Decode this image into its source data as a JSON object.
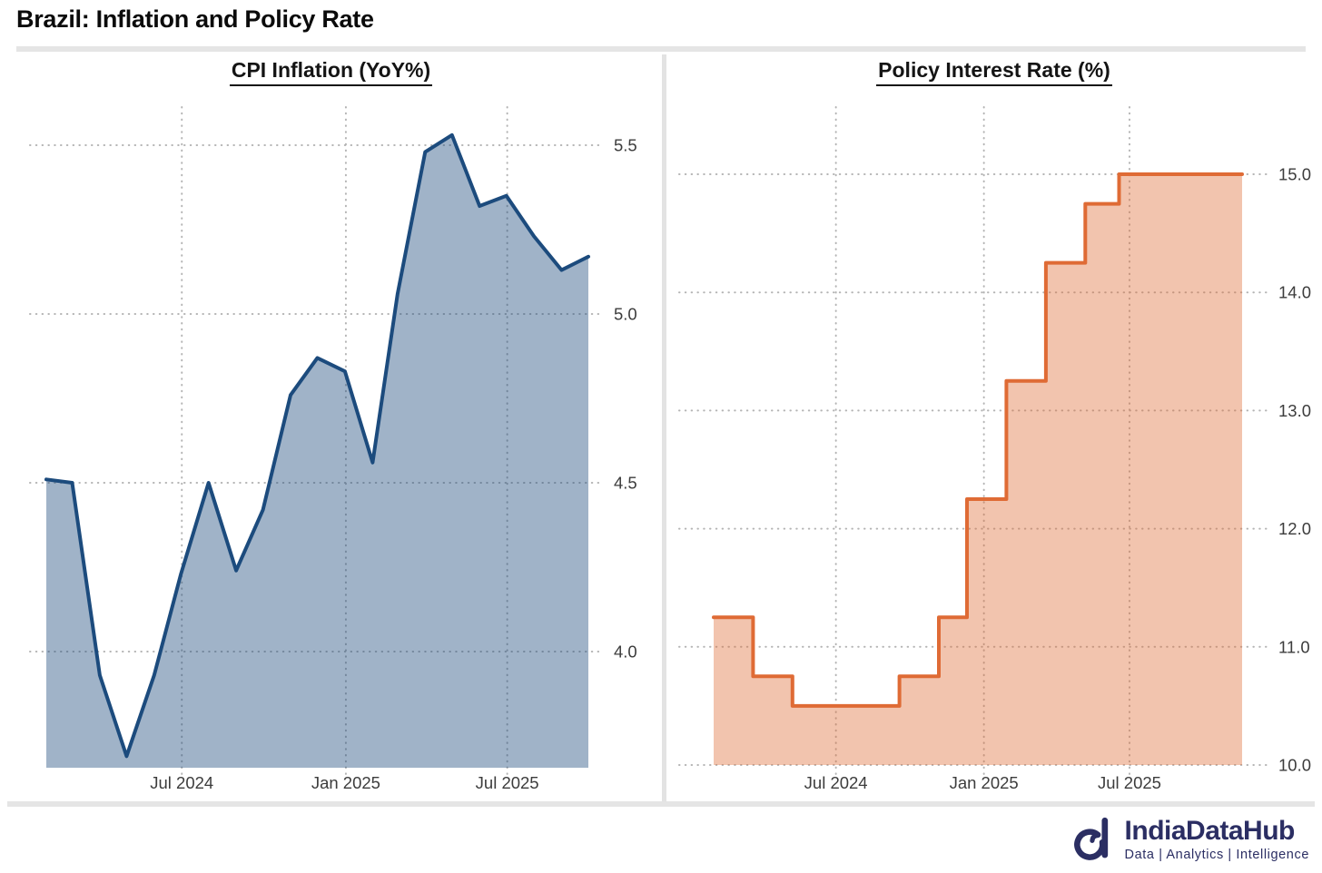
{
  "page": {
    "title": "Brazil: Inflation and Policy Rate"
  },
  "chart_data": [
    {
      "type": "area",
      "title": "CPI Inflation (YoY%)",
      "series_name": "CPI Inflation YoY %",
      "x": [
        "2024-01",
        "2024-02",
        "2024-03",
        "2024-04",
        "2024-05",
        "2024-06",
        "2024-07",
        "2024-08",
        "2024-09",
        "2024-10",
        "2024-11",
        "2024-12",
        "2025-01",
        "2025-02",
        "2025-03",
        "2025-04",
        "2025-05",
        "2025-06",
        "2025-07",
        "2025-08",
        "2025-09"
      ],
      "values": [
        4.51,
        4.5,
        3.93,
        3.69,
        3.93,
        4.23,
        4.5,
        4.24,
        4.42,
        4.76,
        4.87,
        4.83,
        4.56,
        5.06,
        5.48,
        5.53,
        5.32,
        5.35,
        5.23,
        5.13,
        5.17
      ],
      "x_domain": [
        "2024-01-31",
        "2025-09-30"
      ],
      "ylim": [
        3.65,
        5.62
      ],
      "yticks": [
        4.0,
        4.5,
        5.0,
        5.5
      ],
      "ytick_labels": [
        "4.0",
        "4.5",
        "5.0",
        "5.5"
      ],
      "xticks": [
        {
          "date": "2024-07-01",
          "label": "Jul 2024"
        },
        {
          "date": "2025-01-01",
          "label": "Jan 2025"
        },
        {
          "date": "2025-07-01",
          "label": "Jul 2025"
        }
      ],
      "grid": "dotted",
      "legend": null,
      "line_color": "#1c4b7d",
      "fill_color": "rgba(28,75,125,0.42)"
    },
    {
      "type": "step-area",
      "title": "Policy Interest Rate (%)",
      "series_name": "Policy interest rate %",
      "steps": [
        {
          "date": "2024-01-31",
          "value": 11.25
        },
        {
          "date": "2024-03-20",
          "value": 10.75
        },
        {
          "date": "2024-05-08",
          "value": 10.5
        },
        {
          "date": "2024-09-18",
          "value": 10.75
        },
        {
          "date": "2024-11-06",
          "value": 11.25
        },
        {
          "date": "2024-12-11",
          "value": 12.25
        },
        {
          "date": "2025-01-29",
          "value": 13.25
        },
        {
          "date": "2025-03-19",
          "value": 14.25
        },
        {
          "date": "2025-05-07",
          "value": 14.75
        },
        {
          "date": "2025-06-18",
          "value": 15.0
        }
      ],
      "x_domain": [
        "2024-01-31",
        "2025-11-18"
      ],
      "ylim": [
        10.0,
        15.6
      ],
      "yticks": [
        10.0,
        11.0,
        12.0,
        13.0,
        14.0,
        15.0
      ],
      "ytick_labels": [
        "10.0",
        "11.0",
        "12.0",
        "13.0",
        "14.0",
        "15.0"
      ],
      "xticks": [
        {
          "date": "2024-07-01",
          "label": "Jul 2024"
        },
        {
          "date": "2025-01-01",
          "label": "Jan 2025"
        },
        {
          "date": "2025-07-01",
          "label": "Jul 2025"
        }
      ],
      "grid": "dotted",
      "legend": null,
      "line_color": "#df6b35",
      "fill_color": "rgba(223,107,53,0.40)"
    }
  ],
  "footer": {
    "brand": "IndiaDataHub",
    "tagline": "Data | Analytics | Intelligence",
    "brand_color": "#2b2e63"
  },
  "style_colors": {
    "grid_dots": "#b4b4b4",
    "tick_label": "#3c3c3c",
    "separator": "#e5e5e5"
  }
}
